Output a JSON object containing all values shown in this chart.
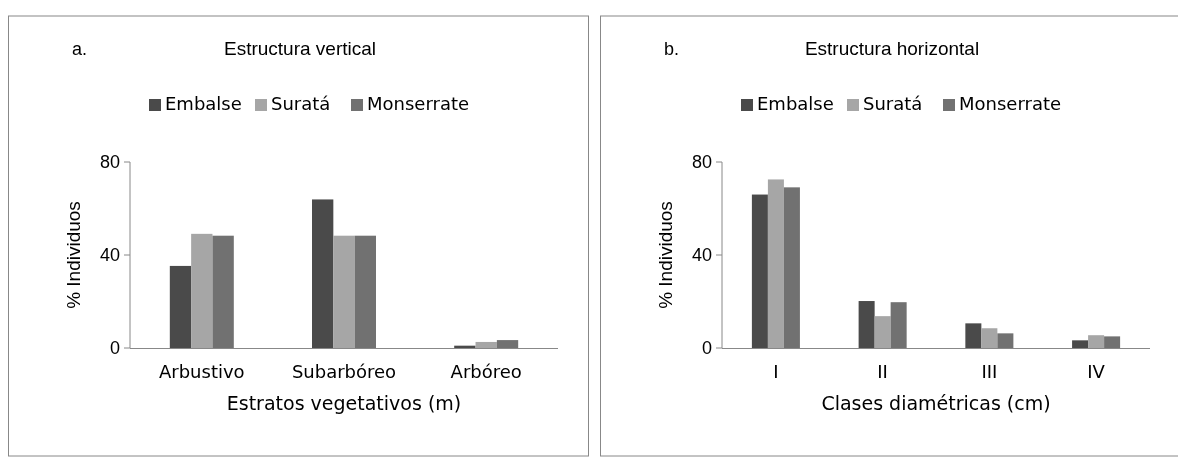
{
  "chart_data": [
    {
      "type": "bar",
      "title": "Estructura vertical",
      "annotations": [
        "a."
      ],
      "xlabel": "Estratos vegetativos (m)",
      "ylabel": "% Individuos",
      "categories": [
        "Arbustivo",
        "Subarbóreo",
        "Arbóreo"
      ],
      "series": [
        {
          "name": "Embalse",
          "color": "#4a4a4a",
          "values": [
            35.3,
            63.9,
            1.0
          ]
        },
        {
          "name": "Suratá",
          "color": "#a6a6a6",
          "values": [
            49.1,
            48.3,
            2.6
          ]
        },
        {
          "name": "Monserrate",
          "color": "#717171",
          "values": [
            48.3,
            48.3,
            3.4
          ]
        }
      ],
      "ylim": [
        0,
        80
      ],
      "yticks": [
        0,
        40,
        80
      ],
      "legend": "top",
      "grid": false
    },
    {
      "type": "bar",
      "title": "Estructura horizontal",
      "annotations": [
        "b."
      ],
      "xlabel": "Clases diamétricas (cm)",
      "ylabel": "% Individuos",
      "categories": [
        "I",
        "II",
        "III",
        "IV"
      ],
      "series": [
        {
          "name": "Embalse",
          "color": "#4a4a4a",
          "values": [
            66,
            20.2,
            10.6,
            3.3
          ]
        },
        {
          "name": "Suratá",
          "color": "#a6a6a6",
          "values": [
            72.5,
            13.7,
            8.5,
            5.5
          ]
        },
        {
          "name": "Monserrate",
          "color": "#717171",
          "values": [
            69.1,
            19.7,
            6.3,
            5.0
          ]
        }
      ],
      "ylim": [
        0,
        80
      ],
      "yticks": [
        0,
        40,
        80
      ],
      "legend": "top",
      "grid": false
    }
  ]
}
